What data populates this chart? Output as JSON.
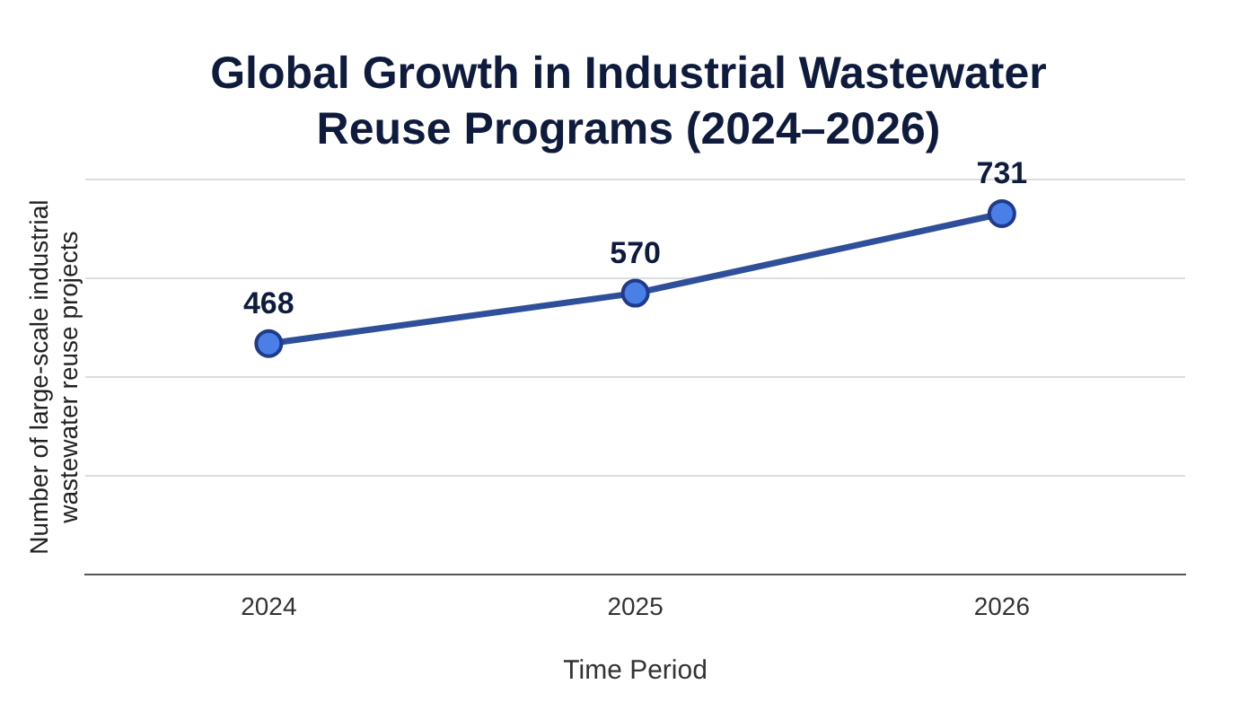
{
  "chart_data": {
    "type": "line",
    "title": "Global Growth in Industrial Wastewater Reuse Programs (2024–2026)",
    "xlabel": "Time Period",
    "ylabel": "Number of large-scale industrial wastewater reuse projects",
    "categories": [
      "2024",
      "2025",
      "2026"
    ],
    "series": [
      {
        "color": "#2f4f9a",
        "values": [
          468,
          570,
          731
        ]
      }
    ],
    "ylim": [
      0,
      800
    ],
    "yticks": [
      {
        "value": 0,
        "label": null
      },
      {
        "value": 200,
        "label": null
      },
      {
        "value": 400,
        "label": null
      },
      {
        "value": 600,
        "label": null
      },
      {
        "value": 800,
        "label": null
      }
    ],
    "tick_labels": "x",
    "grid": "y",
    "legend": false,
    "marker": "circle",
    "line_style": "solid",
    "data_labels": true
  }
}
